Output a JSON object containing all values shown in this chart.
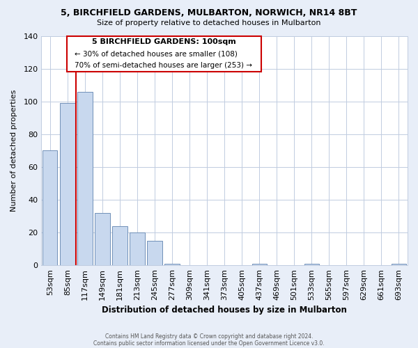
{
  "title": "5, BIRCHFIELD GARDENS, MULBARTON, NORWICH, NR14 8BT",
  "subtitle": "Size of property relative to detached houses in Mulbarton",
  "xlabel": "Distribution of detached houses by size in Mulbarton",
  "ylabel": "Number of detached properties",
  "bar_labels": [
    "53sqm",
    "85sqm",
    "117sqm",
    "149sqm",
    "181sqm",
    "213sqm",
    "245sqm",
    "277sqm",
    "309sqm",
    "341sqm",
    "373sqm",
    "405sqm",
    "437sqm",
    "469sqm",
    "501sqm",
    "533sqm",
    "565sqm",
    "597sqm",
    "629sqm",
    "661sqm",
    "693sqm"
  ],
  "bar_values": [
    70,
    99,
    106,
    32,
    24,
    20,
    15,
    1,
    0,
    0,
    0,
    0,
    1,
    0,
    0,
    1,
    0,
    0,
    0,
    0,
    1
  ],
  "bar_color": "#c8d8ee",
  "bar_edge_color": "#7090b8",
  "marker_color": "#cc0000",
  "ylim": [
    0,
    140
  ],
  "yticks": [
    0,
    20,
    40,
    60,
    80,
    100,
    120,
    140
  ],
  "annotation_text_line1": "5 BIRCHFIELD GARDENS: 100sqm",
  "annotation_text_line2": "← 30% of detached houses are smaller (108)",
  "annotation_text_line3": "70% of semi-detached houses are larger (253) →",
  "footer1": "Contains HM Land Registry data © Crown copyright and database right 2024.",
  "footer2": "Contains public sector information licensed under the Open Government Licence v3.0.",
  "background_color": "#e8eef8",
  "plot_background_color": "#ffffff",
  "grid_color": "#c0cce0"
}
